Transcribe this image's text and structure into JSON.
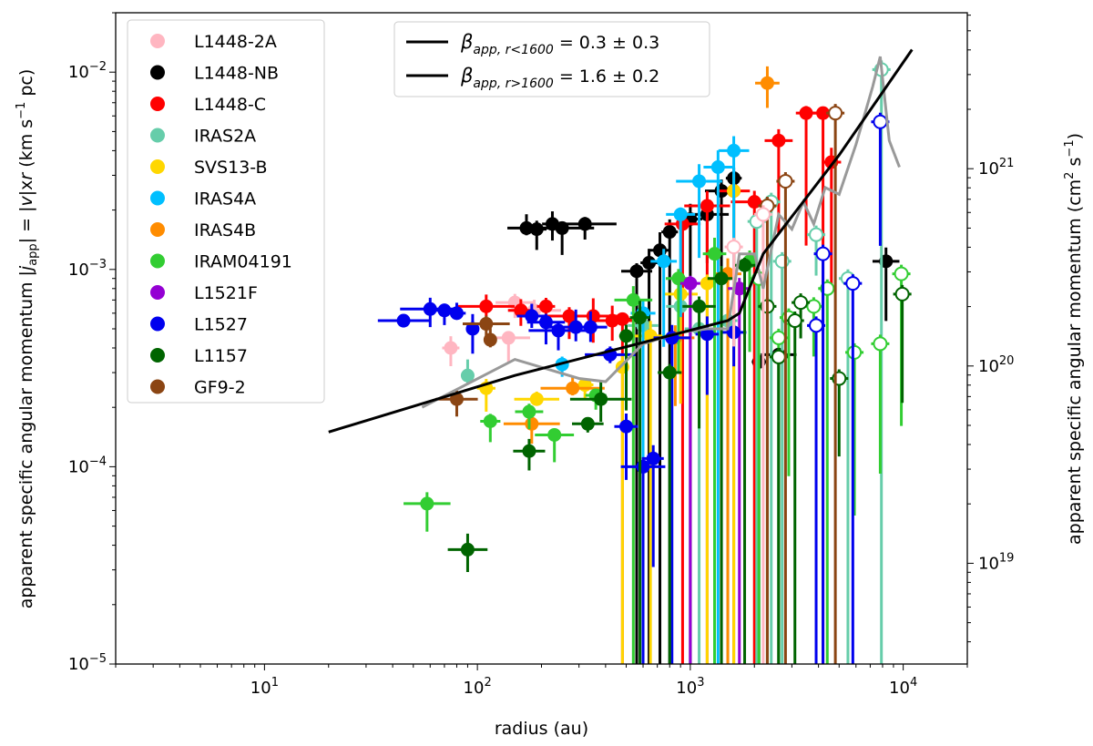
{
  "chart_data": {
    "type": "scatter",
    "xlabel": "radius (au)",
    "ylabel_left": "apparent specific angular momentum |j_app| = |v|xr (km s⁻¹ pc)",
    "ylabel_right": "apparent specific angular momentum (cm² s⁻¹)",
    "xscale": "log",
    "yscale": "log",
    "xlim": [
      2,
      20000
    ],
    "ylim": [
      1e-05,
      0.02
    ],
    "x_ticks": [
      {
        "v": 10,
        "base": "10",
        "exp": "1"
      },
      {
        "v": 100,
        "base": "10",
        "exp": "2"
      },
      {
        "v": 1000,
        "base": "10",
        "exp": "3"
      },
      {
        "v": 10000,
        "base": "10",
        "exp": "4"
      }
    ],
    "y_ticks": [
      {
        "v": 1e-05,
        "base": "10",
        "exp": "−5"
      },
      {
        "v": 0.0001,
        "base": "10",
        "exp": "−4"
      },
      {
        "v": 0.001,
        "base": "10",
        "exp": "−3"
      },
      {
        "v": 0.01,
        "base": "10",
        "exp": "−2"
      }
    ],
    "y2_ticks": [
      {
        "v": 10000000000000000000,
        "base": "10",
        "exp": "19"
      },
      {
        "v": 100000000000000000000,
        "base": "10",
        "exp": "20"
      },
      {
        "v": 1000000000000000000000,
        "base": "10",
        "exp": "21"
      }
    ],
    "y2_conversion_factor": 3.086e+23,
    "legend_position": "upper-left",
    "series": [
      {
        "name": "L1448-2A",
        "color": "#ffb6c1",
        "points": [
          [
            75,
            0.0004
          ],
          [
            150,
            0.00068
          ],
          [
            140,
            0.00045
          ],
          [
            185,
            0.00062
          ]
        ]
      },
      {
        "name": "L1448-NB",
        "color": "#000000",
        "points": [
          [
            170,
            0.00162
          ],
          [
            190,
            0.0016
          ],
          [
            225,
            0.0017
          ],
          [
            250,
            0.00162
          ],
          [
            320,
            0.0017
          ],
          [
            560,
            0.00098
          ],
          [
            640,
            0.00108
          ],
          [
            720,
            0.00125
          ],
          [
            800,
            0.00155
          ],
          [
            1000,
            0.0018
          ],
          [
            1200,
            0.0019
          ],
          [
            1400,
            0.0025
          ],
          [
            1600,
            0.0029
          ],
          [
            2100,
            0.00034
          ],
          [
            2600,
            0.00037
          ],
          [
            8300,
            0.0011
          ]
        ]
      },
      {
        "name": "L1448-C",
        "color": "#ff0000",
        "points": [
          [
            110,
            0.00065
          ],
          [
            160,
            0.00062
          ],
          [
            210,
            0.00065
          ],
          [
            270,
            0.00058
          ],
          [
            350,
            0.00058
          ],
          [
            430,
            0.00055
          ],
          [
            480,
            0.00056
          ],
          [
            920,
            0.0017
          ],
          [
            1200,
            0.0021
          ],
          [
            1600,
            0.0025
          ],
          [
            2000,
            0.0022
          ],
          [
            2600,
            0.0045
          ],
          [
            3500,
            0.0062
          ],
          [
            4200,
            0.0062
          ],
          [
            4600,
            0.0035
          ]
        ]
      },
      {
        "name": "IRAS2A",
        "color": "#66cdaa",
        "points": [
          [
            90,
            0.00029
          ],
          [
            600,
            0.00052
          ],
          [
            900,
            0.00065
          ],
          [
            1100,
            0.0005
          ],
          [
            1500,
            0.00055
          ]
        ]
      },
      {
        "name": "SVS13-B",
        "color": "#ffd700",
        "points": [
          [
            110,
            0.00025
          ],
          [
            190,
            0.00022
          ],
          [
            320,
            0.00026
          ],
          [
            480,
            0.00032
          ],
          [
            650,
            0.00046
          ],
          [
            900,
            0.00075
          ],
          [
            1200,
            0.00085
          ],
          [
            1600,
            0.0025
          ]
        ]
      },
      {
        "name": "IRAS4A",
        "color": "#00bfff",
        "points": [
          [
            250,
            0.00033
          ],
          [
            600,
            0.0006
          ],
          [
            750,
            0.0011
          ],
          [
            900,
            0.0019
          ],
          [
            1100,
            0.0028
          ],
          [
            1350,
            0.0033
          ],
          [
            1600,
            0.004
          ]
        ]
      },
      {
        "name": "IRAS4B",
        "color": "#ff8c00",
        "points": [
          [
            180,
            0.000165
          ],
          [
            280,
            0.00025
          ],
          [
            850,
            0.00045
          ],
          [
            1500,
            0.00095
          ],
          [
            2300,
            0.0088
          ]
        ]
      },
      {
        "name": "IRAM04191",
        "color": "#32cd32",
        "points": [
          [
            58,
            6.5e-05
          ],
          [
            115,
            0.00017
          ],
          [
            175,
            0.00019
          ],
          [
            230,
            0.000145
          ],
          [
            360,
            0.00023
          ],
          [
            540,
            0.0007
          ],
          [
            880,
            0.0009
          ],
          [
            1300,
            0.0012
          ],
          [
            1900,
            0.0011
          ]
        ]
      },
      {
        "name": "L1521F",
        "color": "#9400d3",
        "points": [
          [
            1000,
            0.00085
          ],
          [
            1700,
            0.0008
          ]
        ]
      },
      {
        "name": "L1527",
        "color": "#0000ee",
        "points": [
          [
            45,
            0.00055
          ],
          [
            60,
            0.00063
          ],
          [
            70,
            0.00062
          ],
          [
            80,
            0.0006
          ],
          [
            95,
            0.0005
          ],
          [
            180,
            0.00058
          ],
          [
            210,
            0.00054
          ],
          [
            240,
            0.00049
          ],
          [
            290,
            0.00051
          ],
          [
            340,
            0.00051
          ],
          [
            420,
            0.00037
          ],
          [
            500,
            0.00016
          ],
          [
            600,
            0.0001
          ],
          [
            670,
            0.00011
          ],
          [
            820,
            0.00045
          ],
          [
            1200,
            0.00047
          ],
          [
            1600,
            0.00048
          ]
        ]
      },
      {
        "name": "L1157",
        "color": "#006400",
        "points": [
          [
            90,
            3.8e-05
          ],
          [
            175,
            0.00012
          ],
          [
            330,
            0.000165
          ],
          [
            380,
            0.00022
          ],
          [
            500,
            0.00046
          ],
          [
            580,
            0.00057
          ],
          [
            800,
            0.0003
          ],
          [
            1100,
            0.00065
          ],
          [
            1400,
            0.0009
          ],
          [
            1800,
            0.00105
          ]
        ]
      },
      {
        "name": "GF9-2",
        "color": "#8b4513",
        "points": [
          [
            80,
            0.00022
          ],
          [
            110,
            0.00053
          ],
          [
            115,
            0.00044
          ]
        ]
      }
    ],
    "open_markers": [
      {
        "color": "#66cdaa",
        "points": [
          [
            7900,
            0.0103
          ],
          [
            2050,
            0.00175
          ],
          [
            2400,
            0.0022
          ],
          [
            3900,
            0.0015
          ],
          [
            5500,
            0.0009
          ],
          [
            2700,
            0.0011
          ]
        ]
      },
      {
        "color": "#32cd32",
        "points": [
          [
            2100,
            0.0009
          ],
          [
            2900,
            0.00057
          ],
          [
            3800,
            0.00065
          ],
          [
            4400,
            0.0008
          ],
          [
            5900,
            0.00038
          ],
          [
            7800,
            0.00042
          ],
          [
            9800,
            0.00095
          ],
          [
            2600,
            0.00045
          ]
        ]
      },
      {
        "color": "#006400",
        "points": [
          [
            2300,
            0.00065
          ],
          [
            3300,
            0.00068
          ],
          [
            5000,
            0.00028
          ],
          [
            3100,
            0.00055
          ],
          [
            9900,
            0.00075
          ],
          [
            2600,
            0.00036
          ]
        ]
      },
      {
        "color": "#0000ee",
        "points": [
          [
            7800,
            0.0056
          ],
          [
            3900,
            0.00052
          ],
          [
            5800,
            0.00085
          ],
          [
            4200,
            0.0012
          ]
        ]
      },
      {
        "color": "#8b4513",
        "points": [
          [
            4800,
            0.0062
          ],
          [
            2800,
            0.0028
          ],
          [
            2300,
            0.0021
          ]
        ]
      },
      {
        "color": "#ffb6c1",
        "points": [
          [
            2200,
            0.0019
          ],
          [
            1600,
            0.0013
          ]
        ]
      }
    ],
    "fit_line": {
      "color": "#000000",
      "points": [
        [
          20,
          0.00015
        ],
        [
          150,
          0.00029
        ],
        [
          1500,
          0.00055
        ],
        [
          1700,
          0.0006
        ],
        [
          2200,
          0.0012
        ],
        [
          5000,
          0.0038
        ],
        [
          11000,
          0.013
        ]
      ]
    },
    "mean_line": {
      "color": "#999999",
      "points": [
        [
          55,
          0.0002
        ],
        [
          150,
          0.00035
        ],
        [
          300,
          0.00028
        ],
        [
          400,
          0.00027
        ],
        [
          600,
          0.00042
        ],
        [
          900,
          0.00048
        ],
        [
          1200,
          0.0005
        ],
        [
          1500,
          0.0005
        ],
        [
          1700,
          0.0012
        ],
        [
          2000,
          0.0012
        ],
        [
          2200,
          0.0008
        ],
        [
          2600,
          0.0019
        ],
        [
          3000,
          0.0016
        ],
        [
          3400,
          0.0022
        ],
        [
          3800,
          0.0017
        ],
        [
          4300,
          0.0026
        ],
        [
          5000,
          0.0024
        ],
        [
          6000,
          0.0043
        ],
        [
          7200,
          0.0085
        ],
        [
          7800,
          0.012
        ],
        [
          8600,
          0.0045
        ],
        [
          9600,
          0.0033
        ]
      ]
    },
    "fit_legend": [
      {
        "label": "βapp, r<1600 = 0.3 ± 0.3"
      },
      {
        "label": "βapp, r>1600 = 1.6 ± 0.2"
      }
    ]
  }
}
